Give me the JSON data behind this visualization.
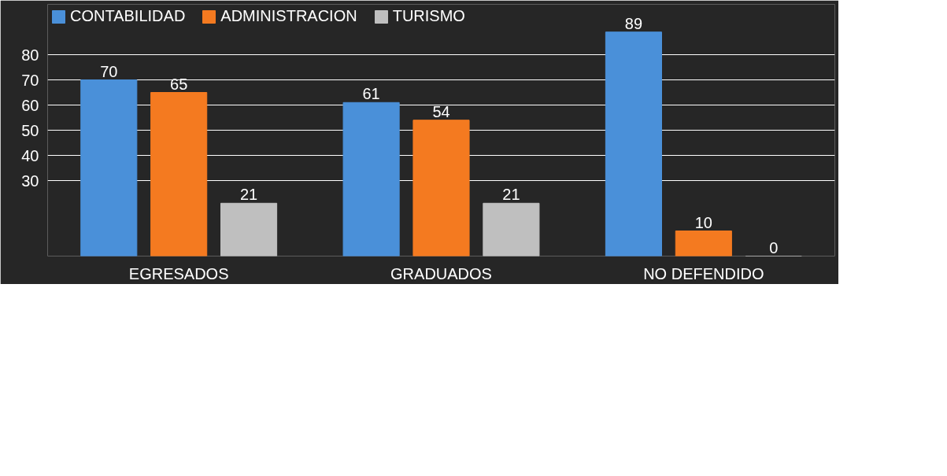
{
  "chart_data": {
    "type": "bar",
    "categories": [
      "EGRESADOS",
      "GRADUADOS",
      "NO DEFENDIDO"
    ],
    "series": [
      {
        "name": "CONTABILIDAD",
        "color": "#4a90d9",
        "values": [
          70,
          61,
          89
        ]
      },
      {
        "name": "ADMINISTRACION",
        "color": "#f47a20",
        "values": [
          65,
          54,
          10
        ]
      },
      {
        "name": "TURISMO",
        "color": "#bfbfbf",
        "values": [
          21,
          21,
          0
        ]
      }
    ],
    "data_labels": true,
    "ylim": [
      0,
      100
    ],
    "yticks": [
      80,
      70,
      60,
      50,
      40,
      30
    ],
    "grid": "y",
    "legend": "top left"
  }
}
